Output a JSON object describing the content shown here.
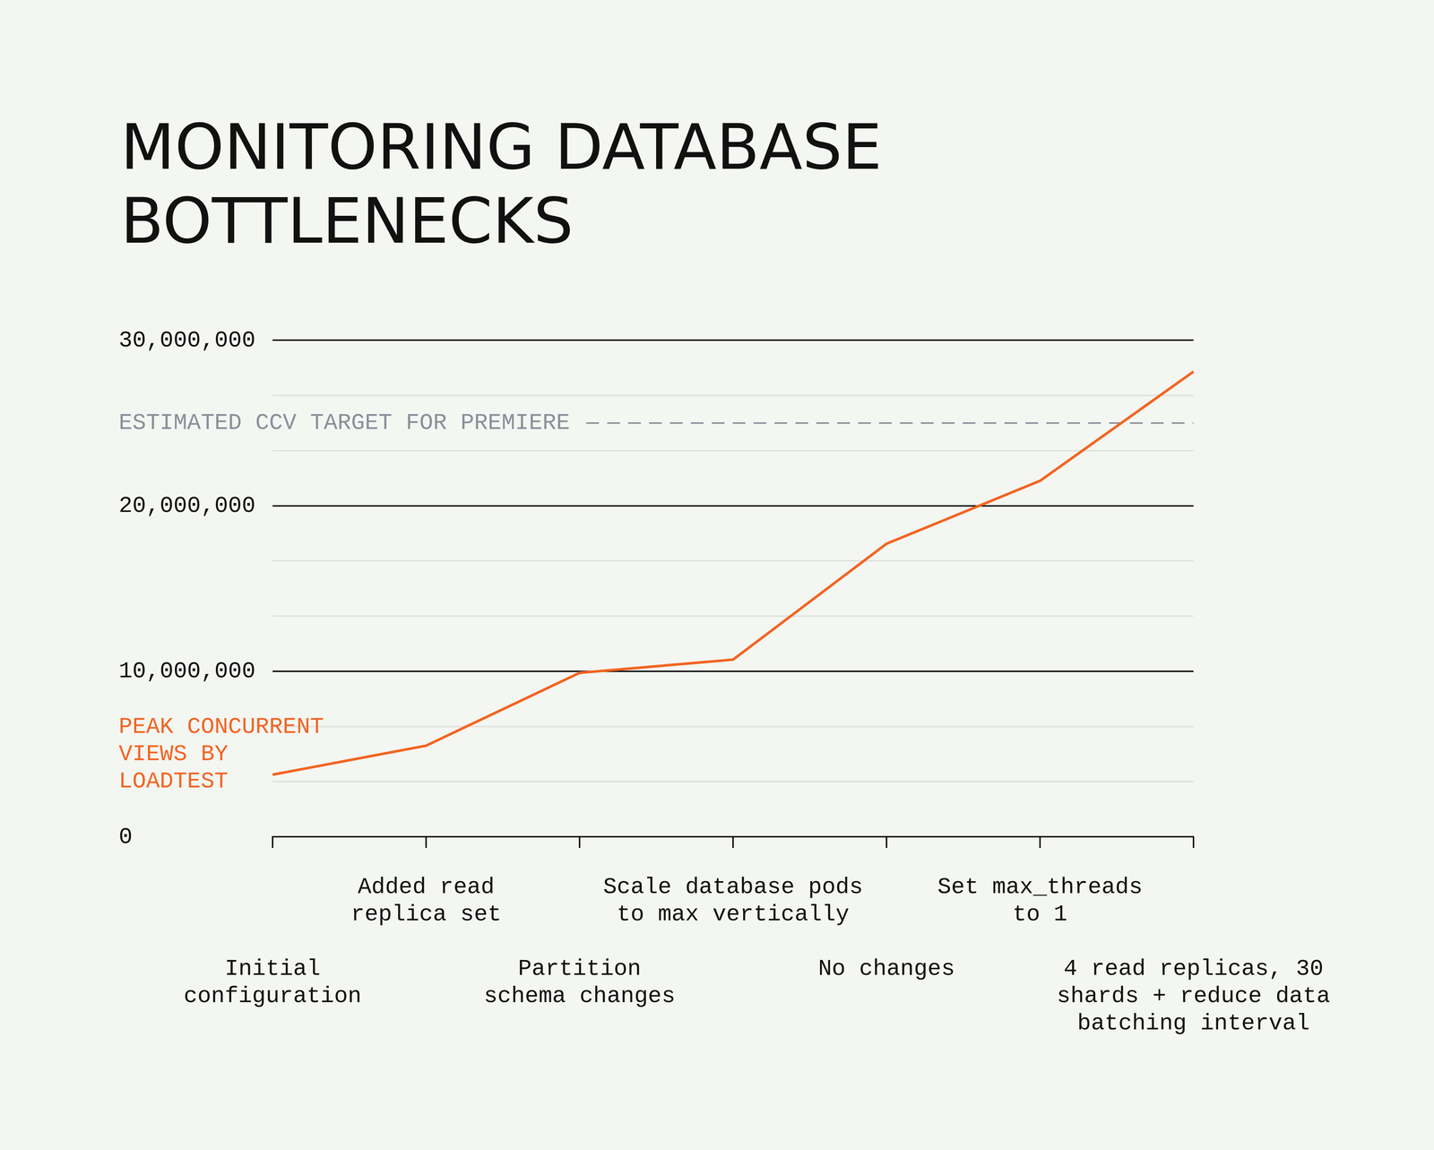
{
  "chart_data": {
    "type": "line",
    "title": "MONITORING DATABASE\nBOTTLENECKS",
    "categories": [
      "Initial\nconfiguration",
      "Added read\nreplica set",
      "Partition\nschema changes",
      "Scale database pods\nto max vertically",
      "No changes",
      "Set max_threads\nto 1",
      "4 read replicas, 30\nshards + reduce data\nbatching interval"
    ],
    "series": [
      {
        "name": "PEAK CONCURRENT\nVIEWS BY\nLOADTEST",
        "color": "#f26522",
        "marker": "none",
        "line_style": "solid",
        "values": [
          3750000,
          5500000,
          9900000,
          10700000,
          17700000,
          21500000,
          28100000
        ]
      }
    ],
    "ylim": [
      0,
      30000000
    ],
    "yticks": [
      0,
      {
        "value": 10000000,
        "label": "10,000,000"
      },
      {
        "value": 20000000,
        "label": "20,000,000"
      },
      {
        "value": 30000000,
        "label": "30,000,000"
      }
    ],
    "grid": true,
    "reference_lines": [
      {
        "value": 25000000,
        "label": "ESTIMATED CCV TARGET FOR PREMIERE",
        "color": "#8a9099",
        "line_style": "dashed"
      }
    ]
  }
}
